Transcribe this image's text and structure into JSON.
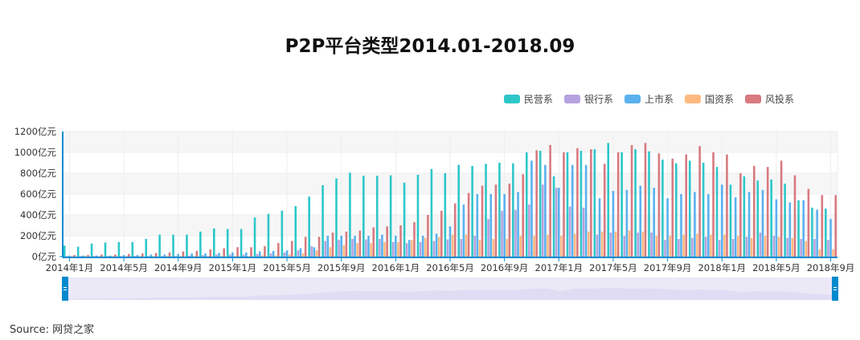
{
  "title": "P2P平台类型2014.01-2018.09",
  "source": "Source:  网贷之家",
  "legend": [
    {
      "name": "民营系",
      "color": "#2ec7c9"
    },
    {
      "name": "银行系",
      "color": "#b6a2de"
    },
    {
      "name": "上市系",
      "color": "#5ab1ef"
    },
    {
      "name": "国资系",
      "color": "#ffb980"
    },
    {
      "name": "风投系",
      "color": "#d87a80"
    }
  ],
  "data_zoom": {
    "start_percent": 0,
    "end_percent": 100,
    "handle_color": "#008acd",
    "fill_color": "#ece9f7"
  },
  "chart_data": {
    "type": "bar",
    "title": "P2P平台类型2014.01-2018.09",
    "xlabel": "",
    "ylabel": "",
    "ylim": [
      0,
      1200
    ],
    "y_ticks": [
      "0亿元",
      "200亿元",
      "400亿元",
      "600亿元",
      "800亿元",
      "1000亿元",
      "1200亿元"
    ],
    "x_tick_labels": [
      "2014年1月",
      "2014年5月",
      "2014年9月",
      "2015年1月",
      "2015年5月",
      "2015年9月",
      "2016年1月",
      "2016年5月",
      "2016年9月",
      "2017年1月",
      "2017年5月",
      "2017年9月",
      "2018年1月",
      "2018年5月",
      "2018年9月"
    ],
    "grid": true,
    "legend_position": "top-right",
    "categories": [
      "2014.01",
      "2014.02",
      "2014.03",
      "2014.04",
      "2014.05",
      "2014.06",
      "2014.07",
      "2014.08",
      "2014.09",
      "2014.10",
      "2014.11",
      "2014.12",
      "2015.01",
      "2015.02",
      "2015.03",
      "2015.04",
      "2015.05",
      "2015.06",
      "2015.07",
      "2015.08",
      "2015.09",
      "2015.10",
      "2015.11",
      "2015.12",
      "2016.01",
      "2016.02",
      "2016.03",
      "2016.04",
      "2016.05",
      "2016.06",
      "2016.07",
      "2016.08",
      "2016.09",
      "2016.10",
      "2016.11",
      "2016.12",
      "2017.01",
      "2017.02",
      "2017.03",
      "2017.04",
      "2017.05",
      "2017.06",
      "2017.07",
      "2017.08",
      "2017.09",
      "2017.10",
      "2017.11",
      "2017.12",
      "2018.01",
      "2018.02",
      "2018.03",
      "2018.04",
      "2018.05",
      "2018.06",
      "2018.07",
      "2018.08",
      "2018.09"
    ],
    "series": [
      {
        "name": "民营系",
        "values": [
          105,
          95,
          125,
          135,
          140,
          140,
          170,
          210,
          210,
          210,
          240,
          270,
          265,
          265,
          375,
          410,
          440,
          485,
          575,
          685,
          750,
          805,
          775,
          775,
          780,
          710,
          785,
          840,
          800,
          880,
          870,
          890,
          900,
          895,
          1000,
          1015,
          770,
          1000,
          1015,
          1030,
          1090,
          1000,
          1030,
          1010,
          930,
          895,
          920,
          900,
          860,
          690,
          770,
          730,
          740,
          700,
          540,
          470,
          460
        ]
      },
      {
        "name": "银行系",
        "values": [
          5,
          5,
          5,
          5,
          5,
          5,
          5,
          5,
          5,
          10,
          15,
          20,
          20,
          20,
          25,
          30,
          40,
          60,
          100,
          150,
          160,
          170,
          165,
          170,
          140,
          130,
          140,
          150,
          165,
          170,
          200,
          360,
          440,
          450,
          500,
          690,
          660,
          480,
          470,
          210,
          230,
          200,
          230,
          230,
          160,
          170,
          180,
          190,
          160,
          170,
          190,
          230,
          200,
          180,
          170,
          170,
          160
        ]
      },
      {
        "name": "上市系",
        "values": [
          10,
          10,
          10,
          10,
          15,
          15,
          20,
          20,
          25,
          30,
          30,
          35,
          40,
          40,
          50,
          55,
          60,
          80,
          90,
          200,
          200,
          200,
          200,
          210,
          200,
          160,
          200,
          220,
          290,
          500,
          600,
          600,
          600,
          620,
          920,
          880,
          660,
          880,
          880,
          560,
          630,
          640,
          680,
          660,
          560,
          600,
          620,
          600,
          690,
          570,
          620,
          640,
          550,
          520,
          540,
          450,
          360
        ]
      },
      {
        "name": "国资系",
        "values": [
          5,
          5,
          5,
          5,
          5,
          5,
          5,
          5,
          5,
          5,
          5,
          5,
          5,
          5,
          10,
          10,
          20,
          30,
          60,
          90,
          110,
          130,
          130,
          140,
          140,
          160,
          180,
          190,
          210,
          210,
          160,
          170,
          170,
          200,
          200,
          210,
          200,
          220,
          240,
          240,
          240,
          250,
          240,
          200,
          200,
          210,
          220,
          210,
          210,
          200,
          180,
          200,
          190,
          180,
          150,
          70,
          70
        ]
      },
      {
        "name": "风投系",
        "values": [
          15,
          15,
          20,
          20,
          25,
          30,
          35,
          40,
          50,
          55,
          70,
          80,
          90,
          90,
          100,
          130,
          150,
          190,
          190,
          230,
          240,
          250,
          280,
          290,
          300,
          330,
          400,
          440,
          510,
          610,
          680,
          690,
          700,
          790,
          1020,
          1070,
          1000,
          1040,
          1030,
          890,
          1000,
          1070,
          1090,
          990,
          940,
          980,
          1060,
          1000,
          980,
          800,
          870,
          860,
          920,
          780,
          650,
          590,
          590
        ]
      }
    ]
  }
}
